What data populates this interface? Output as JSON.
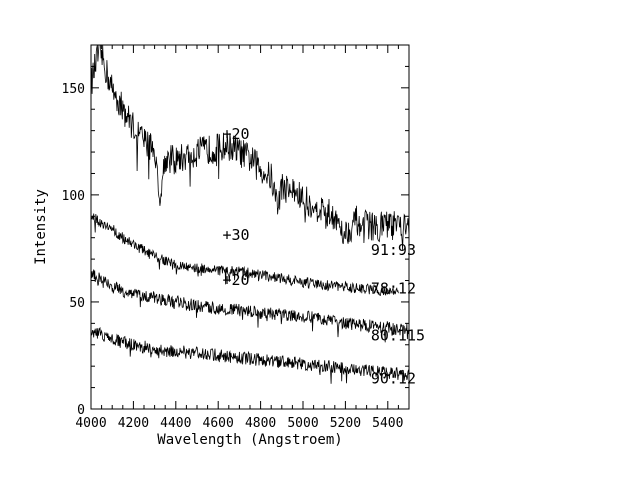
{
  "chart_data": {
    "type": "line",
    "title": "",
    "xlabel": "Wavelength (Angstroem)",
    "ylabel": "Intensity",
    "xlim": [
      4000,
      5500
    ],
    "ylim": [
      0,
      170
    ],
    "xticks": [
      4000,
      4200,
      4400,
      4600,
      4800,
      5000,
      5200,
      5400
    ],
    "yticks": [
      0,
      50,
      100,
      150
    ],
    "grid": false,
    "legend": "none",
    "color": "#000000",
    "series": [
      {
        "name": "91:93",
        "x": [
          4000,
          4020,
          4040,
          4060,
          4080,
          4100,
          4150,
          4200,
          4250,
          4300,
          4320,
          4350,
          4400,
          4450,
          4500,
          4550,
          4600,
          4650,
          4700,
          4750,
          4800,
          4850,
          4880,
          4900,
          4950,
          5000,
          5050,
          5100,
          5150,
          5200,
          5250,
          5300,
          5350,
          5400,
          5450,
          5500
        ],
        "values": [
          152,
          160,
          168,
          162,
          155,
          150,
          140,
          132,
          125,
          122,
          98,
          117,
          116,
          118,
          120,
          121,
          122,
          123,
          120,
          117,
          112,
          108,
          95,
          104,
          102,
          98,
          95,
          93,
          90,
          82,
          88,
          86,
          85,
          86,
          85,
          84
        ]
      },
      {
        "name": "78:12",
        "x": [
          4000,
          4050,
          4100,
          4150,
          4200,
          4250,
          4300,
          4350,
          4400,
          4500,
          4600,
          4700,
          4800,
          4900,
          5000,
          5100,
          5200,
          5300,
          5400,
          5450
        ],
        "values": [
          90,
          87,
          84,
          80,
          77,
          74,
          71,
          69,
          67,
          66,
          65,
          64,
          63,
          61,
          59,
          58,
          57,
          56,
          55,
          55
        ]
      },
      {
        "name": "80:115",
        "x": [
          4000,
          4050,
          4100,
          4150,
          4200,
          4250,
          4300,
          4350,
          4400,
          4500,
          4600,
          4700,
          4800,
          4900,
          5000,
          5100,
          5200,
          5300,
          5400,
          5500
        ],
        "values": [
          63,
          60,
          57,
          55,
          54,
          53,
          52,
          51,
          50,
          48,
          47,
          46,
          45,
          44,
          43,
          42,
          40,
          39,
          38,
          37
        ]
      },
      {
        "name": "90:12",
        "x": [
          4000,
          4050,
          4100,
          4150,
          4200,
          4250,
          4300,
          4350,
          4400,
          4500,
          4600,
          4700,
          4800,
          4900,
          5000,
          5100,
          5200,
          5300,
          5400,
          5500
        ],
        "values": [
          36,
          35,
          33,
          31,
          30,
          29,
          28,
          27,
          27,
          26,
          25,
          24,
          23,
          22,
          21,
          20,
          19,
          18,
          17,
          16
        ]
      }
    ],
    "annotations": [
      {
        "text": "+20",
        "x": 4620,
        "y": 126
      },
      {
        "text": "+30",
        "x": 4620,
        "y": 79
      },
      {
        "text": "+20",
        "x": 4620,
        "y": 58
      },
      {
        "text": "91:93",
        "x": 5320,
        "y": 72
      },
      {
        "text": "78:12",
        "x": 5320,
        "y": 54
      },
      {
        "text": "80:115",
        "x": 5320,
        "y": 32
      },
      {
        "text": "90:12",
        "x": 5320,
        "y": 12
      }
    ]
  }
}
